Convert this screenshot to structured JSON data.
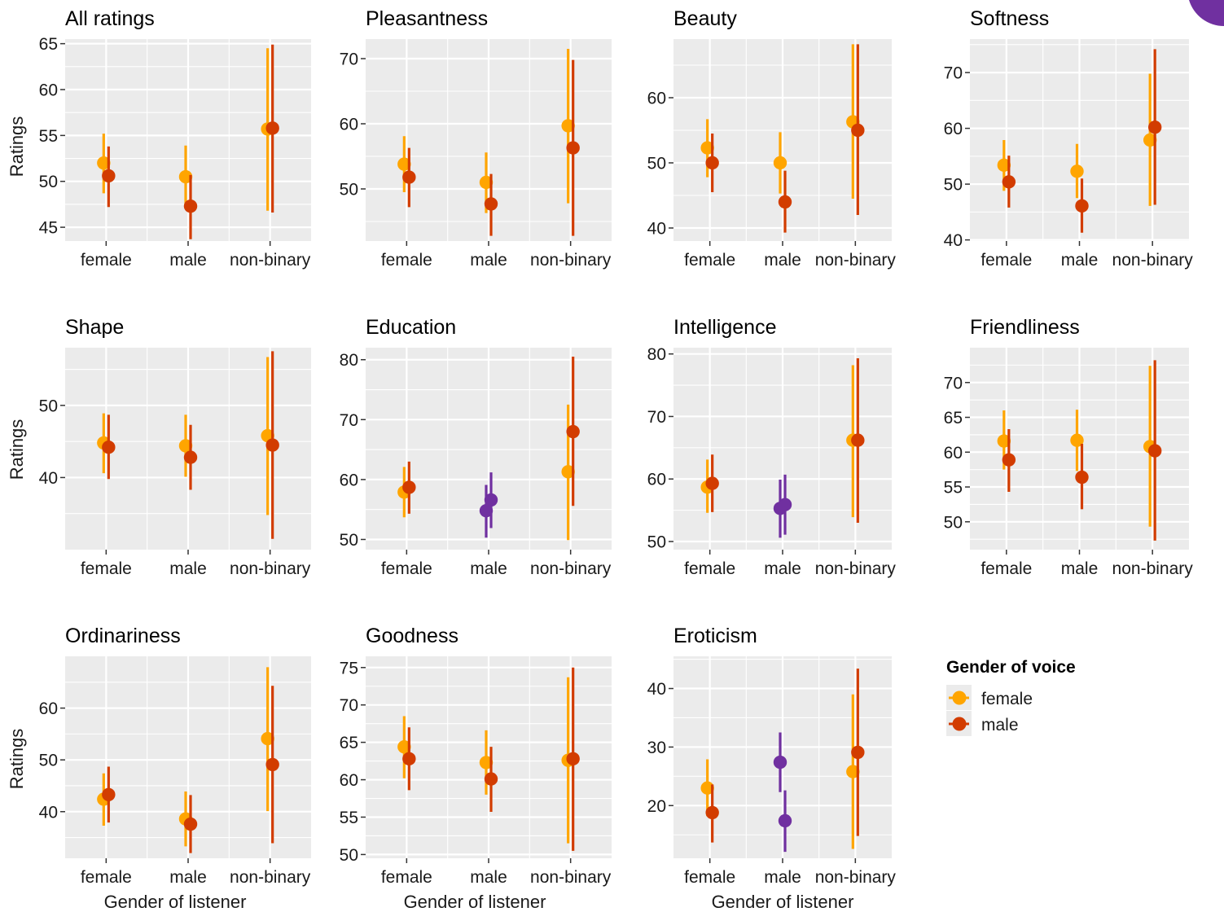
{
  "colors": {
    "female_voice": "#FFA500",
    "male_voice": "#D23C00",
    "highlight": "#7030A0",
    "panel_bg": "#EBEBEB",
    "grid": "#FFFFFF"
  },
  "legend": {
    "title": "Gender of voice",
    "items": [
      {
        "label": "female",
        "color": "#FFA500"
      },
      {
        "label": "male",
        "color": "#D23C00"
      }
    ]
  },
  "shared_labels": {
    "ylabel": "Ratings",
    "xlabel": "Gender of listener"
  },
  "chart_data": [
    {
      "type": "scatter",
      "title": "All ratings",
      "categories": [
        "female",
        "male",
        "non-binary"
      ],
      "ylim": [
        43.5,
        65.5
      ],
      "yticks": [
        45,
        50,
        55,
        60,
        65
      ],
      "series": [
        {
          "name": "female",
          "values": [
            52.0,
            50.5,
            55.7
          ],
          "lower": [
            48.7,
            47.2,
            46.8
          ],
          "upper": [
            55.2,
            53.9,
            64.5
          ]
        },
        {
          "name": "male",
          "values": [
            50.6,
            47.3,
            55.8
          ],
          "lower": [
            47.2,
            43.7,
            46.6
          ],
          "upper": [
            53.8,
            50.7,
            64.9
          ]
        }
      ]
    },
    {
      "type": "scatter",
      "title": "Pleasantness",
      "categories": [
        "female",
        "male",
        "non-binary"
      ],
      "ylim": [
        42,
        73
      ],
      "yticks": [
        50,
        60,
        70
      ],
      "series": [
        {
          "name": "female",
          "values": [
            53.8,
            51.0,
            59.7
          ],
          "lower": [
            49.5,
            46.3,
            47.8
          ],
          "upper": [
            58.1,
            55.6,
            71.5
          ]
        },
        {
          "name": "male",
          "values": [
            51.8,
            47.7,
            56.3
          ],
          "lower": [
            47.2,
            42.8,
            42.8
          ],
          "upper": [
            56.3,
            52.3,
            69.8
          ]
        }
      ]
    },
    {
      "type": "scatter",
      "title": "Beauty",
      "categories": [
        "female",
        "male",
        "non-binary"
      ],
      "ylim": [
        38,
        69
      ],
      "yticks": [
        40,
        50,
        60
      ],
      "series": [
        {
          "name": "female",
          "values": [
            52.3,
            50.0,
            56.3
          ],
          "lower": [
            47.8,
            45.3,
            44.5
          ],
          "upper": [
            56.7,
            54.7,
            68.2
          ]
        },
        {
          "name": "male",
          "values": [
            50.0,
            44.0,
            55.0
          ],
          "lower": [
            45.5,
            39.3,
            42.0
          ],
          "upper": [
            54.5,
            48.8,
            68.2
          ]
        }
      ]
    },
    {
      "type": "scatter",
      "title": "Softness",
      "categories": [
        "female",
        "male",
        "non-binary"
      ],
      "ylim": [
        39.8,
        76
      ],
      "yticks": [
        40,
        50,
        60,
        70
      ],
      "series": [
        {
          "name": "female",
          "values": [
            53.4,
            52.3,
            57.9
          ],
          "lower": [
            48.8,
            47.5,
            46.1
          ],
          "upper": [
            57.9,
            57.2,
            69.8
          ]
        },
        {
          "name": "male",
          "values": [
            50.4,
            46.1,
            60.2
          ],
          "lower": [
            45.8,
            41.3,
            46.3
          ],
          "upper": [
            55.1,
            51.0,
            74.2
          ]
        }
      ]
    },
    {
      "type": "scatter",
      "title": "Shape",
      "categories": [
        "female",
        "male",
        "non-binary"
      ],
      "ylim": [
        30,
        58
      ],
      "yticks": [
        40,
        50
      ],
      "series": [
        {
          "name": "female",
          "values": [
            44.8,
            44.4,
            45.8
          ],
          "lower": [
            40.6,
            40.1,
            34.8
          ],
          "upper": [
            48.9,
            48.7,
            56.7
          ]
        },
        {
          "name": "male",
          "values": [
            44.2,
            42.8,
            44.5
          ],
          "lower": [
            39.8,
            38.3,
            31.5
          ],
          "upper": [
            48.7,
            47.3,
            57.5
          ]
        }
      ]
    },
    {
      "type": "scatter",
      "title": "Education",
      "categories": [
        "female",
        "male",
        "non-binary"
      ],
      "ylim": [
        48.3,
        82
      ],
      "yticks": [
        50,
        60,
        70,
        80
      ],
      "series": [
        {
          "name": "female",
          "values": [
            57.9,
            54.8,
            61.3
          ],
          "lower": [
            53.7,
            50.3,
            49.9
          ],
          "upper": [
            62.1,
            59.1,
            72.5
          ],
          "point_colors": [
            "#FFA500",
            "#7030A0",
            "#FFA500"
          ]
        },
        {
          "name": "male",
          "values": [
            58.7,
            56.6,
            68.0
          ],
          "lower": [
            54.3,
            51.9,
            55.6
          ],
          "upper": [
            63.0,
            61.2,
            80.5
          ],
          "point_colors": [
            "#D23C00",
            "#7030A0",
            "#D23C00"
          ]
        }
      ]
    },
    {
      "type": "scatter",
      "title": "Intelligence",
      "categories": [
        "female",
        "male",
        "non-binary"
      ],
      "ylim": [
        48.7,
        81
      ],
      "yticks": [
        50,
        60,
        70,
        80
      ],
      "series": [
        {
          "name": "female",
          "values": [
            58.7,
            55.3,
            66.2
          ],
          "lower": [
            54.6,
            50.6,
            53.9
          ],
          "upper": [
            63.1,
            59.9,
            78.2
          ],
          "point_colors": [
            "#FFA500",
            "#7030A0",
            "#FFA500"
          ]
        },
        {
          "name": "male",
          "values": [
            59.3,
            55.9,
            66.2
          ],
          "lower": [
            54.7,
            51.1,
            53.0
          ],
          "upper": [
            63.9,
            60.7,
            79.3
          ],
          "point_colors": [
            "#D23C00",
            "#7030A0",
            "#D23C00"
          ]
        }
      ]
    },
    {
      "type": "scatter",
      "title": "Friendliness",
      "categories": [
        "female",
        "male",
        "non-binary"
      ],
      "ylim": [
        46,
        75
      ],
      "yticks": [
        50,
        55,
        60,
        65,
        70
      ],
      "series": [
        {
          "name": "female",
          "values": [
            61.6,
            61.7,
            60.8
          ],
          "lower": [
            57.5,
            57.3,
            49.3
          ],
          "upper": [
            66.0,
            66.1,
            72.4
          ]
        },
        {
          "name": "male",
          "values": [
            58.9,
            56.4,
            60.2
          ],
          "lower": [
            54.3,
            51.8,
            47.3
          ],
          "upper": [
            63.3,
            61.2,
            73.2
          ]
        }
      ]
    },
    {
      "type": "scatter",
      "title": "Ordinariness",
      "categories": [
        "female",
        "male",
        "non-binary"
      ],
      "ylim": [
        31,
        70
      ],
      "yticks": [
        40,
        50,
        60
      ],
      "series": [
        {
          "name": "female",
          "values": [
            42.4,
            38.6,
            54.1
          ],
          "lower": [
            37.3,
            33.3,
            40.1
          ],
          "upper": [
            47.4,
            43.9,
            67.9
          ]
        },
        {
          "name": "male",
          "values": [
            43.3,
            37.6,
            49.1
          ],
          "lower": [
            37.9,
            32.0,
            33.9
          ],
          "upper": [
            48.7,
            43.2,
            64.3
          ]
        }
      ]
    },
    {
      "type": "scatter",
      "title": "Goodness",
      "categories": [
        "female",
        "male",
        "non-binary"
      ],
      "ylim": [
        49.5,
        76.5
      ],
      "yticks": [
        50,
        55,
        60,
        65,
        70,
        75
      ],
      "series": [
        {
          "name": "female",
          "values": [
            64.4,
            62.3,
            62.6
          ],
          "lower": [
            60.2,
            58.0,
            51.5
          ],
          "upper": [
            68.5,
            66.6,
            73.7
          ]
        },
        {
          "name": "male",
          "values": [
            62.8,
            60.1,
            62.8
          ],
          "lower": [
            58.6,
            55.7,
            50.5
          ],
          "upper": [
            67.0,
            64.4,
            75.0
          ]
        }
      ]
    },
    {
      "type": "scatter",
      "title": "Eroticism",
      "categories": [
        "female",
        "male",
        "non-binary"
      ],
      "ylim": [
        11,
        45.5
      ],
      "yticks": [
        20,
        30,
        40
      ],
      "series": [
        {
          "name": "female",
          "values": [
            23.0,
            27.4,
            25.8
          ],
          "lower": [
            18.2,
            22.3,
            12.6
          ],
          "upper": [
            27.9,
            32.5,
            39.0
          ],
          "point_colors": [
            "#FFA500",
            "#7030A0",
            "#FFA500"
          ]
        },
        {
          "name": "male",
          "values": [
            18.8,
            17.4,
            29.1
          ],
          "lower": [
            13.7,
            12.1,
            14.8
          ],
          "upper": [
            23.6,
            22.6,
            43.4
          ],
          "point_colors": [
            "#D23C00",
            "#7030A0",
            "#D23C00"
          ]
        }
      ]
    }
  ]
}
